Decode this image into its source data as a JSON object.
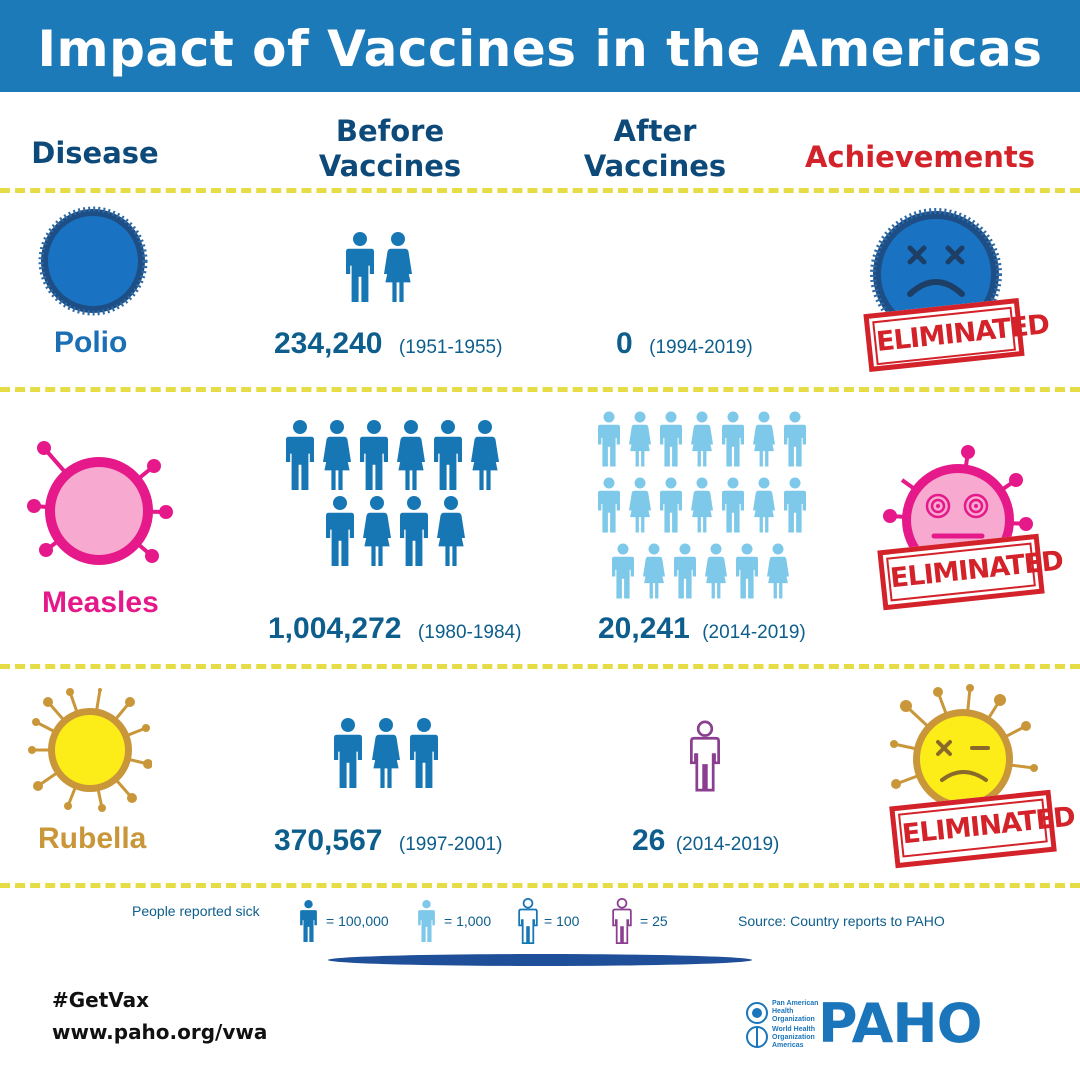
{
  "title": "Impact of Vaccines in the Americas",
  "columns": {
    "disease": "Disease",
    "before_l1": "Before",
    "before_l2": "Vaccines",
    "after_l1": "After",
    "after_l2": "Vaccines",
    "achievements": "Achievements"
  },
  "rows": [
    {
      "disease": "Polio",
      "before_count": "234,240",
      "before_years": "(1951-1955)",
      "after_count": "0",
      "after_years": "(1994-2019)",
      "achievement": "ELIMINATED"
    },
    {
      "disease": "Measles",
      "before_count": "1,004,272",
      "before_years": "(1980-1984)",
      "after_count": "20,241",
      "after_years": "(2014-2019)",
      "achievement": "ELIMINATED"
    },
    {
      "disease": "Rubella",
      "before_count": "370,567",
      "before_years": "(1997-2001)",
      "after_count": "26",
      "after_years": "(2014-2019)",
      "achievement": "ELIMINATED"
    }
  ],
  "legend": {
    "label": "People reported sick",
    "items": [
      "= 100,000",
      "= 1,000",
      "= 100",
      "= 25"
    ],
    "source": "Source: Country reports to PAHO"
  },
  "footer": {
    "hashtag": "#GetVax",
    "url": "www.paho.org/vwa",
    "org_lines": [
      "Pan American",
      "Health",
      "Organization",
      "World Health",
      "Organization",
      "Americas"
    ],
    "logo_text": "PAHO"
  },
  "colors": {
    "header_blue": "#1d7ab8",
    "heading_navy": "#0d4a7a",
    "achievement_red": "#d32229",
    "polio_blue": "#1a6fb5",
    "measles_pink": "#e5198a",
    "rubella_gold": "#c9973a",
    "figure_dark": "#1777b5",
    "figure_light": "#7ec8ea",
    "figure_purple": "#8a3f8f"
  }
}
